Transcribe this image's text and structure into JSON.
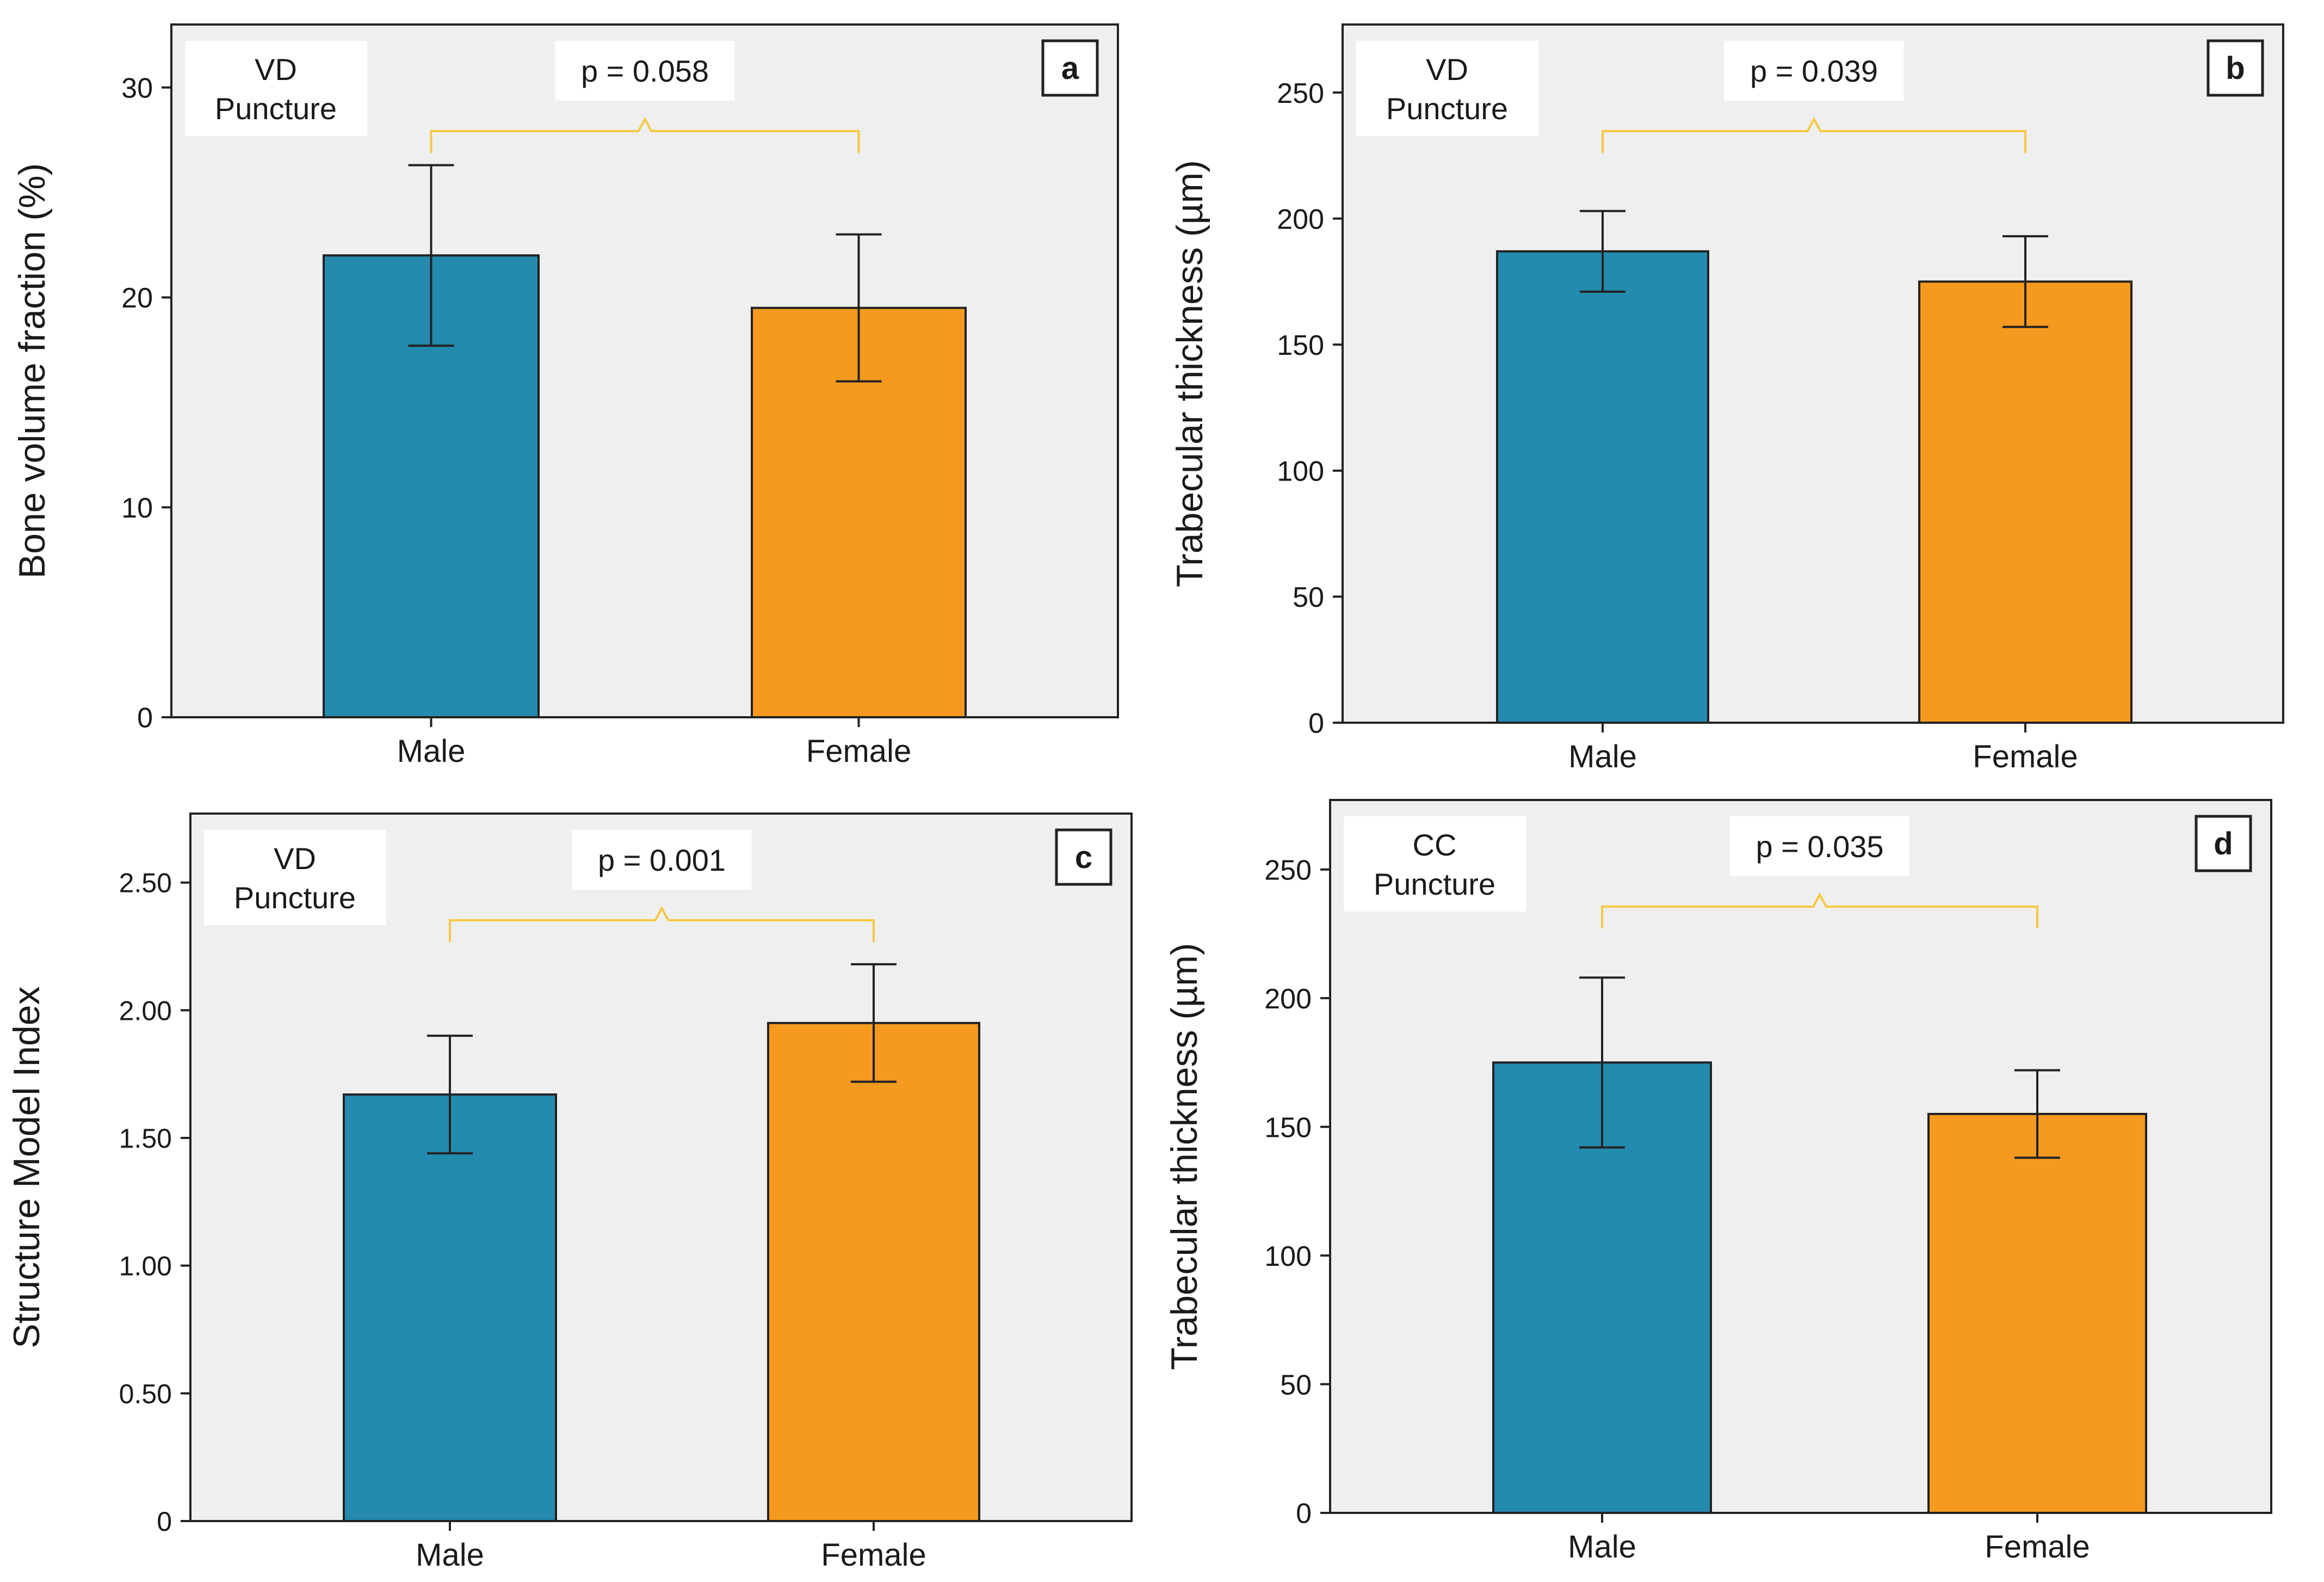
{
  "colors": {
    "panel_bg": "#efefef",
    "male": "#248aae",
    "female": "#f59a1e",
    "bracket": "#f5c842",
    "axis": "#222222",
    "text": "#1a1a1a"
  },
  "chart_data": [
    {
      "type": "bar",
      "panel_label": "a",
      "annotation": [
        "VD",
        "Puncture"
      ],
      "p_value": "p = 0.058",
      "categories": [
        "Male",
        "Female"
      ],
      "values": [
        22.0,
        19.5
      ],
      "errors": [
        4.3,
        3.5
      ],
      "ylabel": "Bone volume fraction (%)",
      "xlabel": "",
      "ylim": [
        0,
        33
      ],
      "yticks": [
        0,
        10,
        20,
        30
      ],
      "ytick_labels": [
        "0",
        "10",
        "20",
        "30"
      ]
    },
    {
      "type": "bar",
      "panel_label": "b",
      "annotation": [
        "VD",
        "Puncture"
      ],
      "p_value": "p = 0.039",
      "categories": [
        "Male",
        "Female"
      ],
      "values": [
        187,
        175
      ],
      "errors": [
        16,
        18
      ],
      "ylabel": "Trabecular thickness (µm)",
      "xlabel": "",
      "ylim": [
        0,
        277
      ],
      "yticks": [
        0,
        50,
        100,
        150,
        200,
        250
      ],
      "ytick_labels": [
        "0",
        "50",
        "100",
        "150",
        "200",
        "250"
      ]
    },
    {
      "type": "bar",
      "panel_label": "c",
      "annotation": [
        "VD",
        "Puncture"
      ],
      "p_value": "p = 0.001",
      "categories": [
        "Male",
        "Female"
      ],
      "values": [
        1.67,
        1.95
      ],
      "errors": [
        0.23,
        0.23
      ],
      "ylabel": "Structure Model Index",
      "xlabel": "",
      "ylim": [
        0,
        2.77
      ],
      "yticks": [
        0,
        0.5,
        1.0,
        1.5,
        2.0,
        2.5
      ],
      "ytick_labels": [
        "0",
        "0.50",
        "1.00",
        "1.50",
        "2.00",
        "2.50"
      ]
    },
    {
      "type": "bar",
      "panel_label": "d",
      "annotation": [
        "CC",
        "Puncture"
      ],
      "p_value": "p = 0.035",
      "categories": [
        "Male",
        "Female"
      ],
      "values": [
        175,
        155
      ],
      "errors": [
        33,
        17
      ],
      "ylabel": "Trabecular thickness (µm)",
      "xlabel": "",
      "ylim": [
        0,
        277
      ],
      "yticks": [
        0,
        50,
        100,
        150,
        200,
        250
      ],
      "ytick_labels": [
        "0",
        "50",
        "100",
        "150",
        "200",
        "250"
      ]
    }
  ]
}
